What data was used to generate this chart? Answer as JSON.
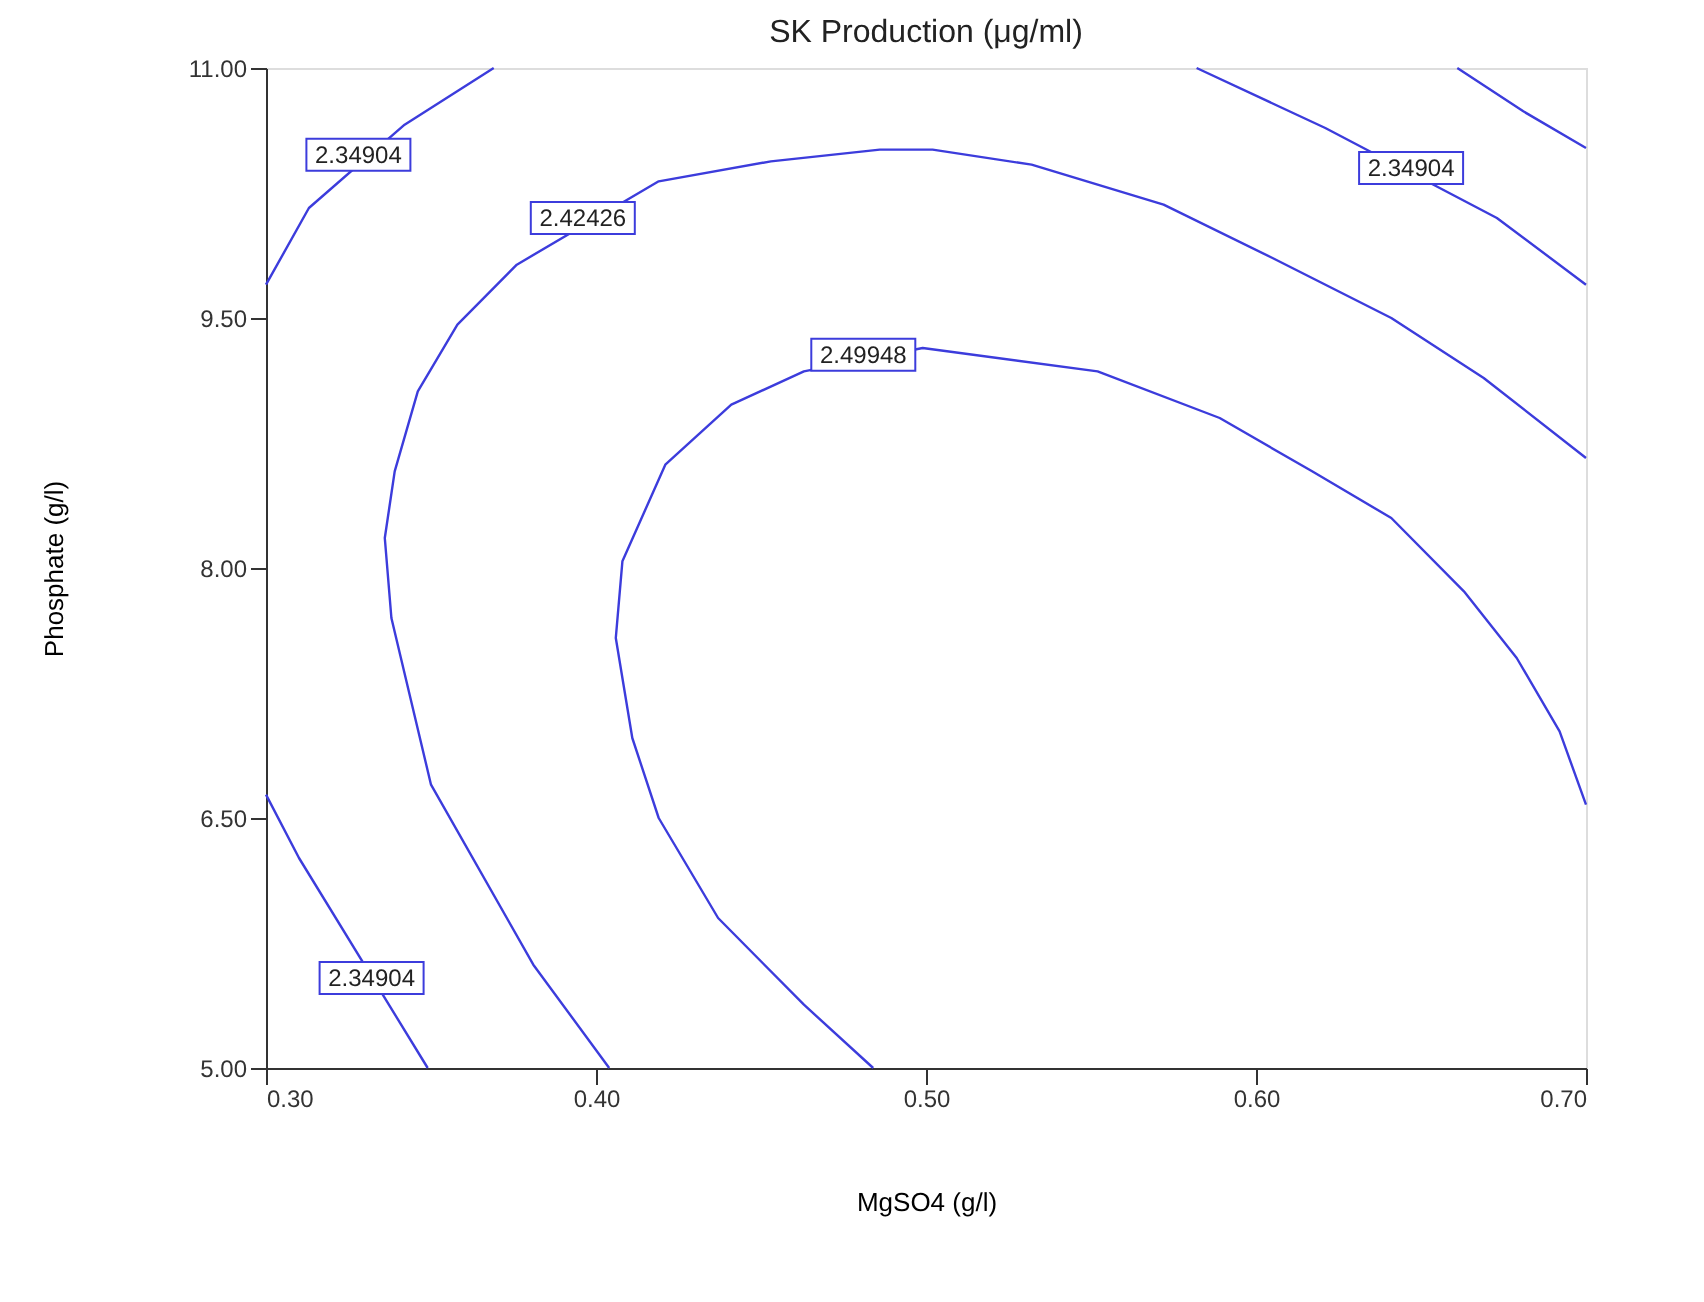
{
  "chart_data": {
    "type": "line",
    "title": "SK Production (μg/ml)",
    "xlabel": "MgSO4 (g/l)",
    "ylabel": "Phosphate (g/l)",
    "xlim": [
      0.3,
      0.7
    ],
    "ylim": [
      5.0,
      11.0
    ],
    "xticks": [
      {
        "value": 0.3,
        "label": "0.30"
      },
      {
        "value": 0.4,
        "label": "0.40"
      },
      {
        "value": 0.5,
        "label": "0.50"
      },
      {
        "value": 0.6,
        "label": "0.60"
      },
      {
        "value": 0.7,
        "label": "0.70"
      }
    ],
    "yticks": [
      {
        "value": 5.0,
        "label": "5.00"
      },
      {
        "value": 6.5,
        "label": "6.50"
      },
      {
        "value": 8.0,
        "label": "8.00"
      },
      {
        "value": 9.5,
        "label": "9.50"
      },
      {
        "value": 11.0,
        "label": "11.00"
      }
    ],
    "grid": false,
    "legend": false,
    "marker": "none",
    "line_style": "solid",
    "series": [
      {
        "color": "#3c3cdc",
        "x": [
          0.3,
          0.313,
          0.328,
          0.342,
          0.369
        ],
        "values": [
          9.7,
          10.16,
          null,
          10.66,
          11.0
        ]
      },
      {
        "color": "#3c3cdc",
        "x": [
          0.404,
          0.381,
          0.35,
          0.338,
          0.336,
          0.339,
          0.346,
          0.358,
          0.376,
          0.396,
          0.419,
          0.453,
          0.486,
          0.502,
          0.532,
          0.572,
          0.605,
          0.641,
          0.669,
          0.7
        ],
        "values": [
          5.0,
          5.62,
          6.7,
          7.7,
          8.18,
          8.58,
          9.06,
          9.46,
          9.82,
          null,
          10.32,
          10.44,
          10.51,
          10.51,
          10.42,
          10.18,
          9.86,
          9.5,
          9.14,
          8.66
        ]
      },
      {
        "color": "#3c3cdc",
        "x": [
          0.484,
          0.463,
          0.437,
          0.419,
          0.411,
          0.406,
          0.408,
          0.421,
          0.441,
          0.463,
          0.481,
          0.499,
          0.552,
          0.589,
          0.617,
          0.641,
          0.663,
          0.679,
          0.692,
          0.7
        ],
        "values": [
          5.0,
          5.38,
          5.9,
          6.5,
          6.98,
          7.58,
          8.04,
          8.62,
          8.98,
          9.18,
          null,
          9.32,
          9.18,
          8.9,
          8.58,
          8.3,
          7.86,
          7.46,
          7.02,
          6.58
        ]
      },
      {
        "color": "#3c3cdc",
        "x": [
          0.582,
          0.621,
          0.647,
          0.673,
          0.7
        ],
        "values": [
          11.0,
          10.64,
          null,
          10.1,
          9.7
        ]
      },
      {
        "color": "#3c3cdc",
        "x": [
          0.661,
          0.681,
          0.7
        ],
        "values": [
          11.0,
          10.74,
          10.52
        ]
      },
      {
        "color": "#3c3cdc",
        "x": [
          0.3,
          0.31,
          0.332,
          0.349
        ],
        "values": [
          6.64,
          6.26,
          null,
          5.0
        ]
      }
    ],
    "annotations": [
      {
        "text": "2.34904",
        "x": 0.328,
        "y": 10.48
      },
      {
        "text": "2.42426",
        "x": 0.396,
        "y": 10.1
      },
      {
        "text": "2.49948",
        "x": 0.481,
        "y": 9.28
      },
      {
        "text": "2.34904",
        "x": 0.647,
        "y": 10.4
      },
      {
        "text": "2.34904",
        "x": 0.332,
        "y": 5.54
      }
    ]
  }
}
